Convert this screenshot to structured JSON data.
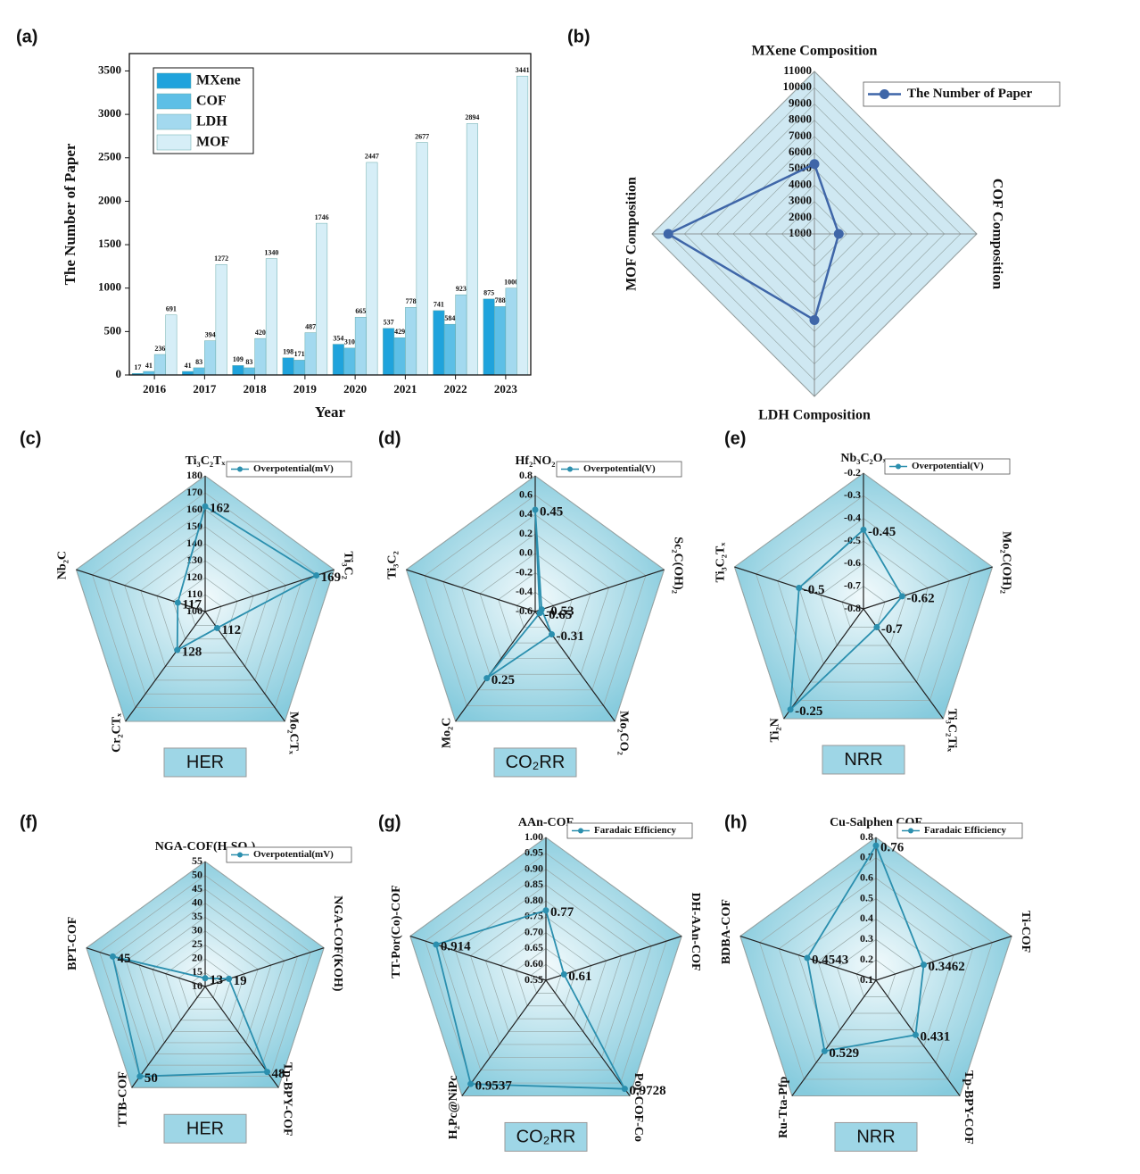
{
  "chart_data": [
    {
      "type": "bar",
      "panel": "(a)",
      "x_label": "Year",
      "y_label": "The Number of Paper",
      "categories": [
        "2016",
        "2017",
        "2018",
        "2019",
        "2020",
        "2021",
        "2022",
        "2023"
      ],
      "series": [
        {
          "name": "MXene",
          "color": "#1fa3dc",
          "values": [
            17,
            41,
            109,
            198,
            354,
            537,
            741,
            875
          ]
        },
        {
          "name": "COF",
          "color": "#5dbfe6",
          "values": [
            41,
            83,
            83,
            171,
            310,
            429,
            584,
            788
          ]
        },
        {
          "name": "LDH",
          "color": "#a3d9ef",
          "values": [
            236,
            394,
            420,
            487,
            665,
            778,
            923,
            1000
          ]
        },
        {
          "name": "MOF",
          "color": "#d6eef7",
          "values": [
            691,
            1272,
            1340,
            1746,
            2447,
            2677,
            2894,
            3441
          ]
        }
      ],
      "ylim": [
        0,
        3700
      ],
      "yticks": [
        0,
        500,
        1000,
        1500,
        2000,
        2500,
        3000,
        3500
      ],
      "data_labels": true
    },
    {
      "type": "radar",
      "panel": "(b)",
      "axes": [
        "MXene Composition",
        "COF Composition",
        "LDH Composition",
        "MOF Composition"
      ],
      "series": [
        {
          "name": "The Number of Paper",
          "color": "#3f66a8",
          "values": [
            5300,
            2500,
            6300,
            10000
          ]
        }
      ],
      "rlim": [
        1000,
        11000
      ],
      "rticks": [
        1000,
        2000,
        3000,
        4000,
        5000,
        6000,
        7000,
        8000,
        9000,
        10000,
        11000
      ],
      "data_labels": false
    },
    {
      "type": "radar",
      "panel": "(c)",
      "tag": "HER",
      "axes": [
        "Ti₃C₂Tₓ",
        "Ti₃C₂",
        "Mo₂CTₓ",
        "Cr₂CTₓ",
        "Nb₂C"
      ],
      "series": [
        {
          "name": "Overpotential(mV)",
          "color": "#2b8fae",
          "values": [
            162,
            169,
            112,
            128,
            117
          ]
        }
      ],
      "rlim": [
        100,
        180
      ],
      "rticks": [
        100,
        110,
        120,
        130,
        140,
        150,
        160,
        170,
        180
      ],
      "data_labels": true
    },
    {
      "type": "radar",
      "panel": "(d)",
      "tag": "CO₂RR",
      "axes": [
        "Hf₂NO₂",
        "Sc₂C(OH)₂",
        "Mo₂CO₂",
        "Mo₂C",
        "Ti₃C₂"
      ],
      "series": [
        {
          "name": "Overpotential(V)",
          "color": "#2b8fae",
          "values": [
            0.45,
            -0.53,
            -0.31,
            0.25,
            -0.65
          ]
        }
      ],
      "rlim": [
        -0.6,
        0.8
      ],
      "rticks": [
        -0.6,
        -0.4,
        -0.2,
        {
          "value": 0,
          "label": "0.0"
        },
        0.2,
        0.4,
        0.6,
        0.8
      ],
      "data_labels": true
    },
    {
      "type": "radar",
      "panel": "(e)",
      "tag": "NRR",
      "axes": [
        "Nb₃C₂Oₓ",
        "Mo₂C(OH)₂",
        "Ti₃C₂Tiₓ",
        "Ti₂N",
        "Ti₃C₂Tₓ"
      ],
      "series": [
        {
          "name": "Overpotential(V)",
          "color": "#2b8fae",
          "values": [
            -0.45,
            -0.62,
            -0.7,
            -0.25,
            -0.5
          ]
        }
      ],
      "rlim": [
        -0.8,
        -0.2
      ],
      "rticks": [
        -0.8,
        -0.7,
        -0.6,
        -0.5,
        -0.4,
        -0.3,
        -0.2
      ],
      "data_labels": true
    },
    {
      "type": "radar",
      "panel": "(f)",
      "tag": "HER",
      "axes": [
        "NGA-COF(H₂SO₄)",
        "NGA-COF(KOH)",
        "Tp-BPY-COF",
        "TTB-COF",
        "BPT-COF"
      ],
      "series": [
        {
          "name": "Overpotential(mV)",
          "color": "#2b8fae",
          "values": [
            13,
            19,
            48,
            50,
            45
          ]
        }
      ],
      "rlim": [
        10,
        55
      ],
      "rticks": [
        10,
        15,
        20,
        25,
        30,
        35,
        40,
        45,
        50,
        55
      ],
      "data_labels": true
    },
    {
      "type": "radar",
      "panel": "(g)",
      "tag": "CO₂RR",
      "axes": [
        "AAn-COF",
        "DH-AAn-COF",
        "Por-COF-Co",
        "H₂Pc@NiPc",
        "TT-Por(Co)-COF"
      ],
      "series": [
        {
          "name": "Faradaic Efficiency",
          "color": "#2b8fae",
          "values": [
            0.77,
            0.61,
            0.9728,
            0.9537,
            0.914
          ]
        }
      ],
      "rlim": [
        0.55,
        1.0
      ],
      "rticks": [
        0.55,
        {
          "value": 0.6,
          "label": "0.60"
        },
        0.65,
        {
          "value": 0.7,
          "label": "0.70"
        },
        0.75,
        {
          "value": 0.8,
          "label": "0.80"
        },
        0.85,
        {
          "value": 0.9,
          "label": "0.90"
        },
        0.95,
        {
          "value": 1.0,
          "label": "1.00"
        }
      ],
      "data_labels": true
    },
    {
      "type": "radar",
      "panel": "(h)",
      "tag": "NRR",
      "axes": [
        "Cu-Salphen COF",
        "Ti-COF",
        "Tp-BPY-COF",
        "Ru-Tta-Pfp",
        "BDBA-COF"
      ],
      "series": [
        {
          "name": "Faradaic Efficiency",
          "color": "#2b8fae",
          "values": [
            0.76,
            0.3462,
            0.431,
            0.529,
            0.4543
          ]
        }
      ],
      "rlim": [
        0.1,
        0.8
      ],
      "rticks": [
        0.1,
        0.2,
        0.3,
        0.4,
        0.5,
        0.6,
        0.7,
        0.8
      ],
      "data_labels": true
    }
  ]
}
